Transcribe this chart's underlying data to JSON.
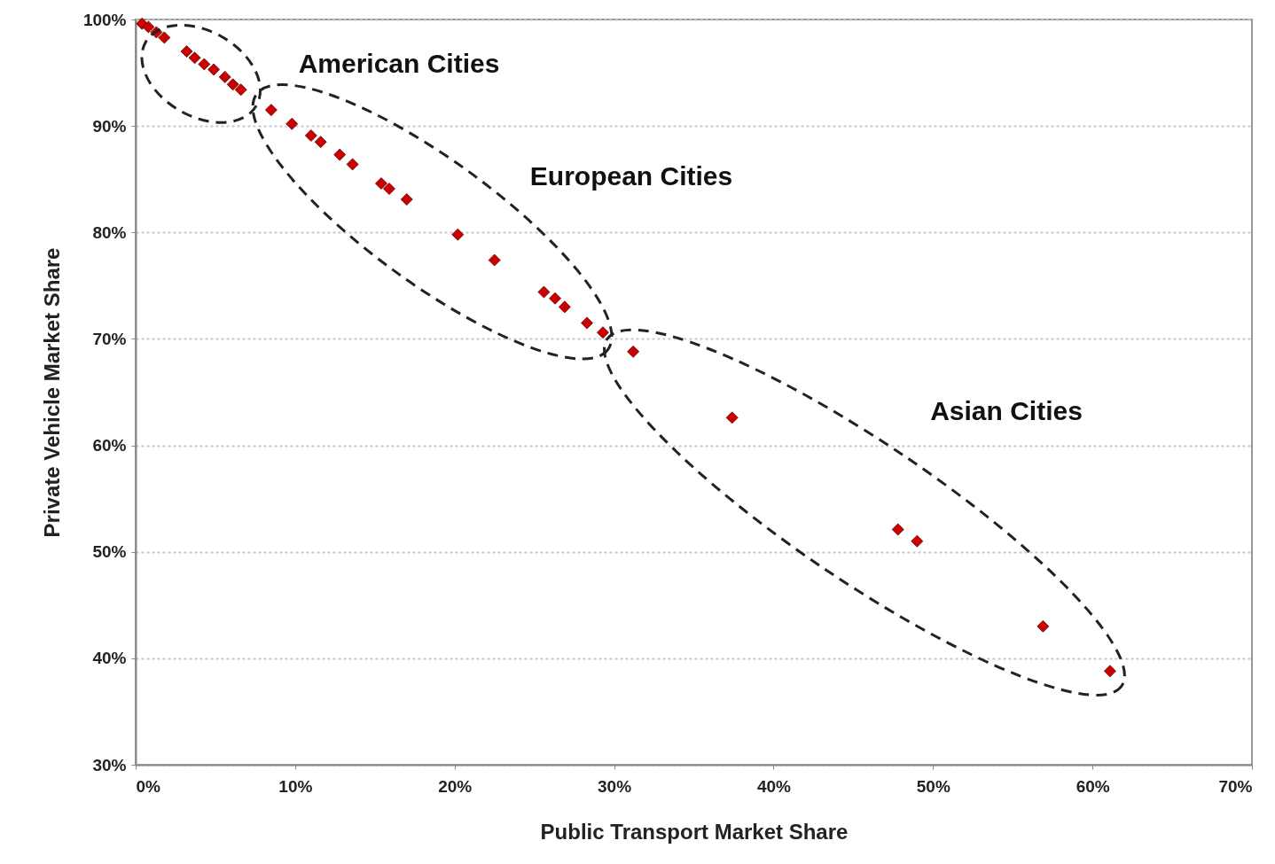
{
  "chart_data": {
    "type": "scatter",
    "xlabel": "Public Transport Market Share",
    "ylabel": "Private Vehicle Market Share",
    "x": [
      0.4,
      0.8,
      1.3,
      1.8,
      3.2,
      3.7,
      4.3,
      4.9,
      5.6,
      6.1,
      6.6,
      8.5,
      9.8,
      11.0,
      11.6,
      12.8,
      13.6,
      15.4,
      15.9,
      17.0,
      20.2,
      22.5,
      25.6,
      26.3,
      26.9,
      28.3,
      29.3,
      31.2,
      37.4,
      47.8,
      49.0,
      56.9,
      61.1
    ],
    "values": [
      99.6,
      99.3,
      98.8,
      98.3,
      97.0,
      96.4,
      95.8,
      95.3,
      94.6,
      93.9,
      93.4,
      91.5,
      90.2,
      89.1,
      88.5,
      87.3,
      86.4,
      84.6,
      84.1,
      83.1,
      79.8,
      77.4,
      74.4,
      73.8,
      73.0,
      71.5,
      70.6,
      68.8,
      62.6,
      52.1,
      51.0,
      43.0,
      38.8
    ],
    "color": "#cc0000",
    "marker": "diamond",
    "xlim": [
      0,
      70
    ],
    "ylim": [
      30,
      100
    ],
    "xticks": [
      {
        "value": 0,
        "label": "0%"
      },
      {
        "value": 10,
        "label": "10%"
      },
      {
        "value": 20,
        "label": "20%"
      },
      {
        "value": 30,
        "label": "30%"
      },
      {
        "value": 40,
        "label": "40%"
      },
      {
        "value": 50,
        "label": "50%"
      },
      {
        "value": 60,
        "label": "60%"
      },
      {
        "value": 70,
        "label": "70%"
      }
    ],
    "yticks": [
      {
        "value": 30,
        "label": "30%"
      },
      {
        "value": 40,
        "label": "40%"
      },
      {
        "value": 50,
        "label": "50%"
      },
      {
        "value": 60,
        "label": "60%"
      },
      {
        "value": 70,
        "label": "70%"
      },
      {
        "value": 80,
        "label": "80%"
      },
      {
        "value": 90,
        "label": "90%"
      },
      {
        "value": 100,
        "label": "100%"
      }
    ],
    "grid": "y",
    "annotations": [
      "American Cities",
      "European Cities",
      "Asian Cities"
    ]
  }
}
